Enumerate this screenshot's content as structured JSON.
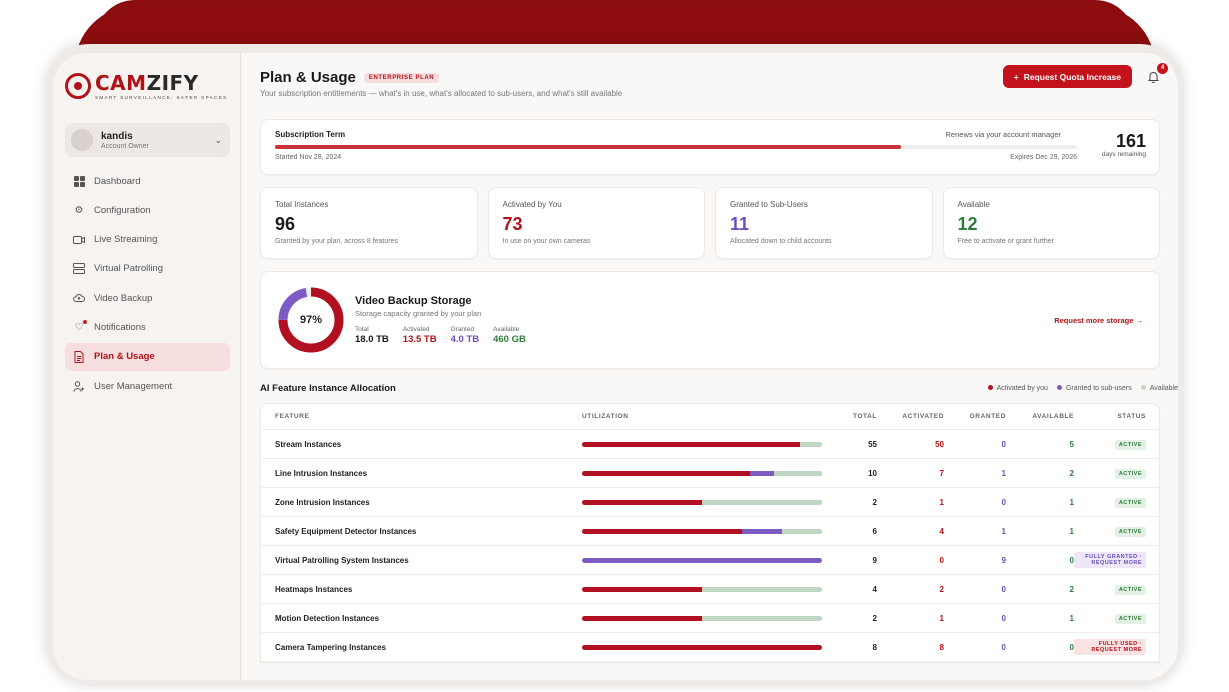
{
  "brand": {
    "name_a": "CAM",
    "name_b": "ZIFY",
    "tagline": "SMART SURVEILLANCE, SAFER SPACES"
  },
  "account": {
    "name": "kandis",
    "role": "Account Owner"
  },
  "nav": [
    {
      "label": "Dashboard",
      "icon": "dashboard-icon"
    },
    {
      "label": "Configuration",
      "icon": "gear-icon"
    },
    {
      "label": "Live Streaming",
      "icon": "camera-icon"
    },
    {
      "label": "Virtual Patrolling",
      "icon": "server-icon"
    },
    {
      "label": "Video Backup",
      "icon": "cloud-upload-icon"
    },
    {
      "label": "Notifications",
      "icon": "bell-icon"
    },
    {
      "label": "Plan & Usage",
      "icon": "document-icon"
    },
    {
      "label": "User Management",
      "icon": "users-icon"
    }
  ],
  "header": {
    "title": "Plan & Usage",
    "plan_badge": "ENTERPRISE PLAN",
    "subtitle": "Your subscription entitlements — what's in use, what's allocated to sub-users, and what's still available",
    "quota_button": "Request Quota Increase",
    "notification_count": "4"
  },
  "term": {
    "label": "Subscription Term",
    "renew": "Renews via your account manager",
    "started": "Started Nov 28, 2024",
    "expires": "Expires Dec 29, 2026",
    "progress": 0.78,
    "days": "161",
    "days_label": "days remaining"
  },
  "stats": [
    {
      "label": "Total Instances",
      "value": "96",
      "sub": "Granted by your plan, across 8 features",
      "color": "#1a1a1a"
    },
    {
      "label": "Activated by You",
      "value": "73",
      "sub": "In use on your own cameras",
      "color": "#b01318"
    },
    {
      "label": "Granted to Sub-Users",
      "value": "11",
      "sub": "Allocated down to child accounts",
      "color": "#6b4fbb"
    },
    {
      "label": "Available",
      "value": "12",
      "sub": "Free to activate or grant further",
      "color": "#2e7d3a"
    }
  ],
  "storage": {
    "percent": "97%",
    "title": "Video Backup Storage",
    "subtitle": "Storage capacity granted by your plan",
    "metrics": [
      {
        "label": "Total",
        "value": "18.0 TB",
        "color": "#1a1a1a"
      },
      {
        "label": "Activated",
        "value": "13.5 TB",
        "color": "#b01318"
      },
      {
        "label": "Granted",
        "value": "4.0 TB",
        "color": "#6b4fbb"
      },
      {
        "label": "Available",
        "value": "460 GB",
        "color": "#2e7d3a"
      }
    ],
    "activated_fraction": 0.75,
    "granted_fraction": 0.222,
    "link": "Request more storage →"
  },
  "allocation": {
    "title": "AI Feature Instance Allocation",
    "legend": [
      {
        "label": "Activated by you",
        "color": "#b01020"
      },
      {
        "label": "Granted to sub-users",
        "color": "#7c5cc4"
      },
      {
        "label": "Available",
        "color": "#bfd6c2"
      }
    ],
    "columns": {
      "feature": "FEATURE",
      "utilization": "UTILIZATION",
      "total": "TOTAL",
      "activated": "ACTIVATED",
      "granted": "GRANTED",
      "available": "AVAILABLE",
      "status": "STATUS"
    },
    "rows": [
      {
        "feature": "Stream Instances",
        "total": 55,
        "activated": 50,
        "granted": 0,
        "available": 5,
        "status": "ACTIVE",
        "status_type": "active"
      },
      {
        "feature": "Line Intrusion Instances",
        "total": 10,
        "activated": 7,
        "granted": 1,
        "available": 2,
        "status": "ACTIVE",
        "status_type": "active"
      },
      {
        "feature": "Zone Intrusion Instances",
        "total": 2,
        "activated": 1,
        "granted": 0,
        "available": 1,
        "status": "ACTIVE",
        "status_type": "active"
      },
      {
        "feature": "Safety Equipment Detector Instances",
        "total": 6,
        "activated": 4,
        "granted": 1,
        "available": 1,
        "status": "ACTIVE",
        "status_type": "active"
      },
      {
        "feature": "Virtual Patrolling System Instances",
        "total": 9,
        "activated": 0,
        "granted": 9,
        "available": 0,
        "status": "FULLY GRANTED · REQUEST MORE",
        "status_type": "granted"
      },
      {
        "feature": "Heatmaps Instances",
        "total": 4,
        "activated": 2,
        "granted": 0,
        "available": 2,
        "status": "ACTIVE",
        "status_type": "active"
      },
      {
        "feature": "Motion Detection Instances",
        "total": 2,
        "activated": 1,
        "granted": 0,
        "available": 1,
        "status": "ACTIVE",
        "status_type": "active"
      },
      {
        "feature": "Camera Tampering Instances",
        "total": 8,
        "activated": 8,
        "granted": 0,
        "available": 0,
        "status": "FULLY USED · REQUEST MORE",
        "status_type": "used"
      }
    ]
  }
}
